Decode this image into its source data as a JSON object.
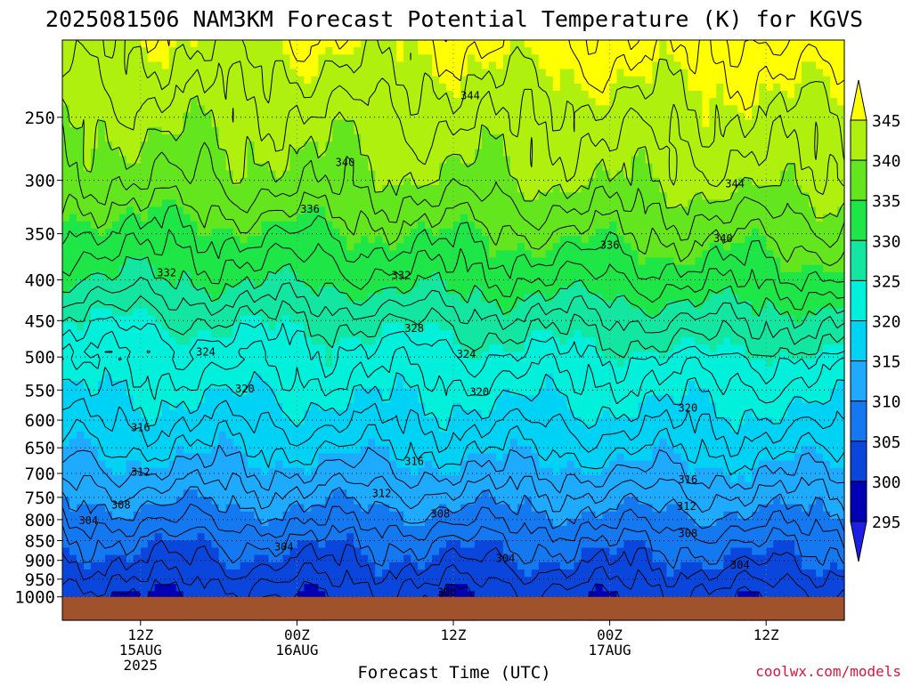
{
  "chart_data": {
    "type": "heatmap",
    "title": "2025081506 NAM3KM Forecast Potential Temperature (K) for KGVS",
    "xlabel": "Forecast Time (UTC)",
    "ylabel": "",
    "credit": "coolwx.com/models",
    "x_unit": "hours since 2025-08-15 00Z",
    "xlim": [
      6.0,
      66.0
    ],
    "x_ticks": [
      {
        "x": 12,
        "lines": [
          "12Z",
          "15AUG",
          "2025"
        ]
      },
      {
        "x": 24,
        "lines": [
          "00Z",
          "16AUG"
        ]
      },
      {
        "x": 36,
        "lines": [
          "12Z"
        ]
      },
      {
        "x": 48,
        "lines": [
          "00Z",
          "17AUG"
        ]
      },
      {
        "x": 60,
        "lines": [
          "12Z"
        ]
      }
    ],
    "y_unit": "hPa",
    "y_scale": "log",
    "ylim": [
      1070,
      200
    ],
    "y_ticks": [
      250,
      300,
      350,
      400,
      450,
      500,
      550,
      600,
      650,
      700,
      750,
      800,
      850,
      900,
      950,
      1000
    ],
    "grid": true,
    "ground_pressure": 1000,
    "ground_color": "#a0522d",
    "colorbar": {
      "ticks": [
        295,
        300,
        305,
        310,
        315,
        320,
        325,
        330,
        335,
        340,
        345
      ],
      "colors": [
        "#1e1ee6",
        "#0000b4",
        "#0a46dc",
        "#1478f0",
        "#1eaaff",
        "#00d2f5",
        "#00f0dc",
        "#12e6a0",
        "#1ee646",
        "#64e61e",
        "#aff00f",
        "#ffff00"
      ],
      "extend": "both"
    },
    "contour_interval": 2,
    "contour_labels": [
      {
        "value": 344,
        "x": 37.3,
        "p": 235
      },
      {
        "value": 344,
        "x": 57.6,
        "p": 303
      },
      {
        "value": 340,
        "x": 27.7,
        "p": 285
      },
      {
        "value": 340,
        "x": 56.7,
        "p": 355
      },
      {
        "value": 336,
        "x": 25.0,
        "p": 326
      },
      {
        "value": 336,
        "x": 48.0,
        "p": 362
      },
      {
        "value": 332,
        "x": 14.0,
        "p": 392
      },
      {
        "value": 332,
        "x": 32.0,
        "p": 395
      },
      {
        "value": 328,
        "x": 33.0,
        "p": 460
      },
      {
        "value": 324,
        "x": 17.0,
        "p": 493
      },
      {
        "value": 324,
        "x": 37.0,
        "p": 496
      },
      {
        "value": 320,
        "x": 20.0,
        "p": 548
      },
      {
        "value": 320,
        "x": 38.0,
        "p": 553
      },
      {
        "value": 320,
        "x": 54.0,
        "p": 579
      },
      {
        "value": 316,
        "x": 12.0,
        "p": 613
      },
      {
        "value": 316,
        "x": 33.0,
        "p": 676
      },
      {
        "value": 316,
        "x": 54.0,
        "p": 713
      },
      {
        "value": 312,
        "x": 12.0,
        "p": 697
      },
      {
        "value": 312,
        "x": 30.5,
        "p": 742
      },
      {
        "value": 312,
        "x": 53.9,
        "p": 770
      },
      {
        "value": 308,
        "x": 10.5,
        "p": 767
      },
      {
        "value": 308,
        "x": 35.0,
        "p": 787
      },
      {
        "value": 308,
        "x": 54.0,
        "p": 833
      },
      {
        "value": 304,
        "x": 8.0,
        "p": 802
      },
      {
        "value": 304,
        "x": 23.0,
        "p": 865
      },
      {
        "value": 304,
        "x": 40.0,
        "p": 895
      },
      {
        "value": 304,
        "x": 58.0,
        "p": 912
      },
      {
        "value": 300,
        "x": 35.5,
        "p": 987
      }
    ],
    "profile": {
      "pressure_hPa": [
        1000,
        950,
        900,
        850,
        800,
        750,
        700,
        650,
        600,
        550,
        500,
        450,
        400,
        350,
        300,
        250,
        200
      ],
      "theta_K": [
        300.5,
        302.5,
        304.5,
        306.2,
        308.8,
        311.2,
        313.8,
        316.2,
        318.6,
        321.0,
        323.4,
        326.8,
        331.4,
        335.2,
        339.6,
        342.2,
        346.0
      ]
    }
  }
}
